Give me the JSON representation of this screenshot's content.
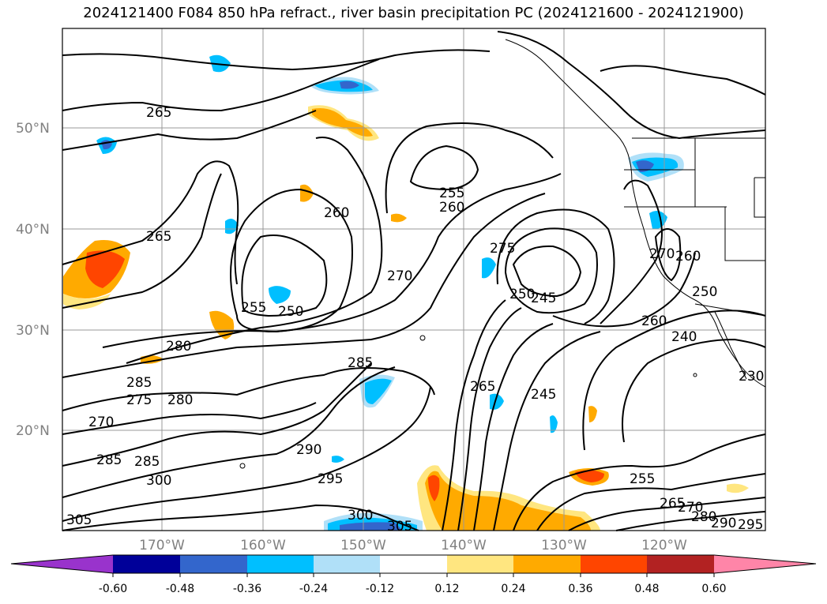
{
  "title": "2024121400 F084 850 hPa refract., river basin precipitation PC (2024121600 - 2024121900)",
  "lat_labels": [
    "50°N",
    "40°N",
    "30°N",
    "20°N"
  ],
  "lon_labels": [
    "170°W",
    "160°W",
    "150°W",
    "140°W",
    "130°W",
    "120°W"
  ],
  "contour_labels": [
    "265",
    "265",
    "260",
    "255",
    "260",
    "270",
    "275",
    "250",
    "255",
    "250",
    "245",
    "260",
    "270",
    "260",
    "250",
    "240",
    "280",
    "285",
    "285",
    "275",
    "280",
    "270",
    "285",
    "285",
    "300",
    "290",
    "295",
    "265",
    "245",
    "255",
    "265",
    "270",
    "280",
    "290",
    "295",
    "300",
    "305",
    "305",
    "230"
  ],
  "colorbar": {
    "tick_labels": [
      "-0.60",
      "-0.48",
      "-0.36",
      "-0.24",
      "-0.12",
      "0.12",
      "0.24",
      "0.36",
      "0.48",
      "0.60"
    ],
    "colors": [
      "#9933cc",
      "#000099",
      "#3366cc",
      "#00bfff",
      "#b0e0f8",
      "#ffffff",
      "#ffe680",
      "#ffaa00",
      "#ff4500",
      "#b22222",
      "#ff85a8"
    ]
  },
  "fill_colors": {
    "neg_light": "#b0e0f8",
    "neg_mid": "#00bfff",
    "neg_strong": "#3366cc",
    "pos_light": "#ffe680",
    "pos_mid": "#ffaa00",
    "pos_strong": "#ff4500"
  }
}
